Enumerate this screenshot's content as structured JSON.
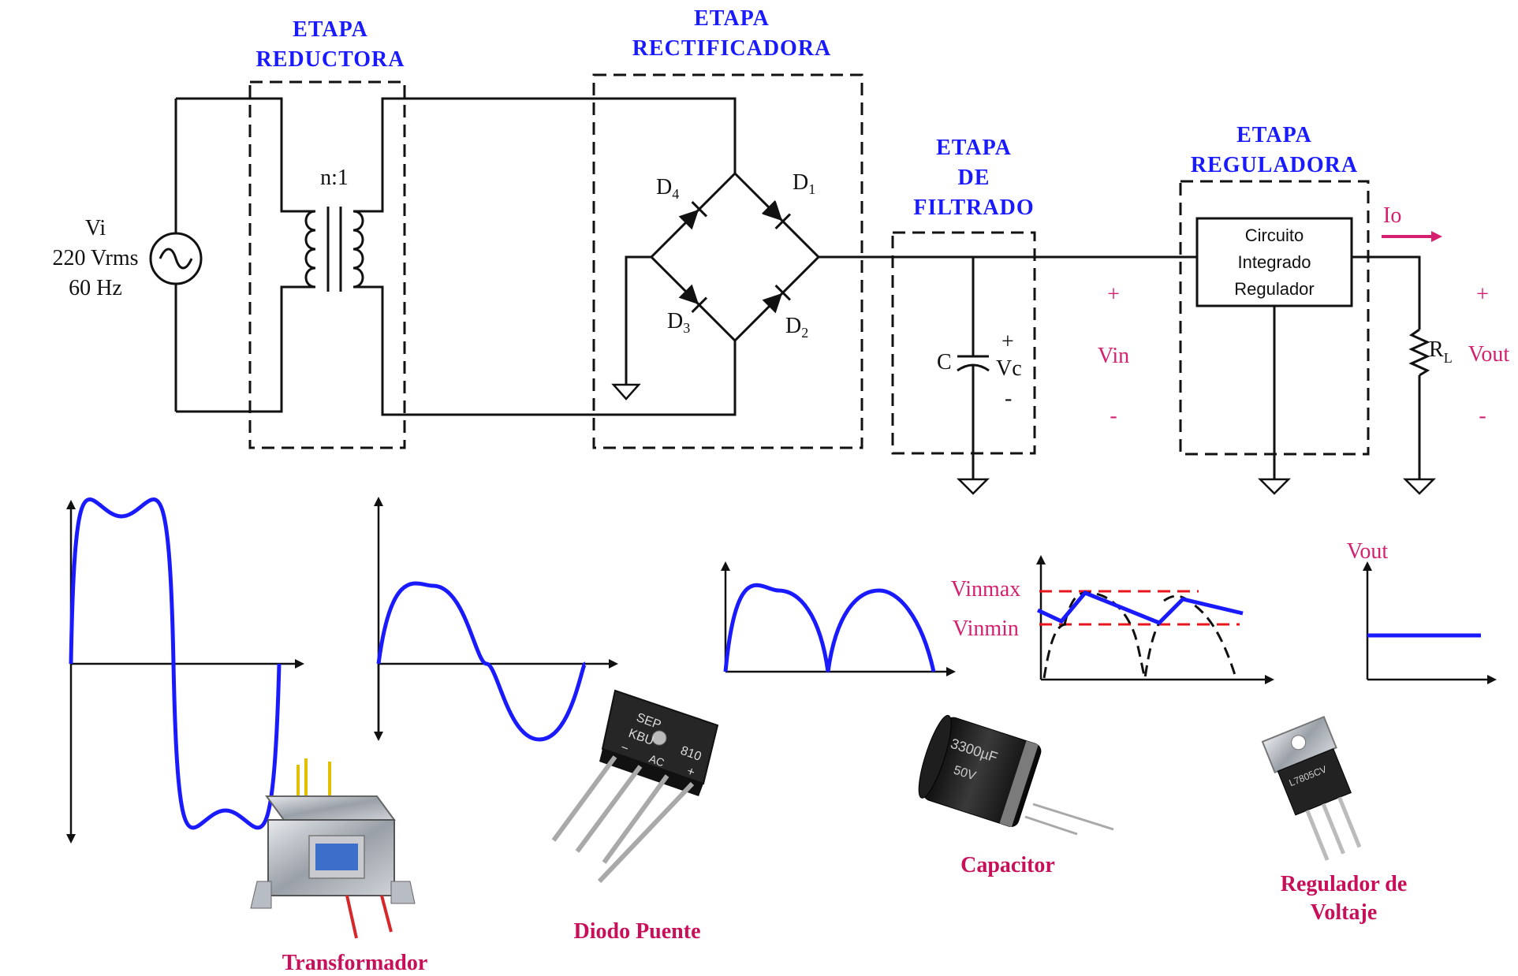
{
  "stages": {
    "reductora": [
      "ETAPA",
      "REDUCTORA"
    ],
    "rectificadora": [
      "ETAPA",
      "RECTIFICADORA"
    ],
    "filtrado": [
      "ETAPA",
      "DE",
      "FILTRADO"
    ],
    "reguladora": [
      "ETAPA",
      "REGULADORA"
    ]
  },
  "source": {
    "name": "Vi",
    "voltage": "220 Vrms",
    "freq": "60 Hz"
  },
  "transformer_ratio": "n:1",
  "diodes": {
    "d1": "D",
    "d1_sub": "1",
    "d2": "D",
    "d2_sub": "2",
    "d3": "D",
    "d3_sub": "3",
    "d4": "D",
    "d4_sub": "4"
  },
  "capacitor": {
    "name": "C",
    "voltage": "Vc",
    "plus": "+",
    "minus": "-"
  },
  "vin": {
    "label": "Vin",
    "plus": "+",
    "minus": "-"
  },
  "regulator_box": [
    "Circuito",
    "Integrado",
    "Regulador"
  ],
  "io_label": "Io",
  "load": {
    "name": "R",
    "sub": "L",
    "vout": "Vout",
    "plus": "+",
    "minus": "-"
  },
  "waveform_labels": {
    "vinmax": "Vinmax",
    "vinmin": "Vinmin",
    "vout": "Vout"
  },
  "components": {
    "transformer": "Transformador",
    "bridge": "Diodo Puente",
    "capacitor": "Capacitor",
    "regulator": [
      "Regulador de",
      "Voltaje"
    ]
  },
  "bridge_marking": {
    "brand": "SEP",
    "model": "KBU",
    "num": "810",
    "ac": "AC",
    "minus": "−",
    "plus": "+"
  },
  "capacitor_marking": {
    "value": "3300µF",
    "volt": "50V"
  },
  "regulator_marking": {
    "part": "L7805CV"
  },
  "colors": {
    "stage_title": "#1a1aff",
    "wave": "#1a1aff",
    "accent_pink": "#d4206f",
    "limit_line": "#e8141e"
  }
}
